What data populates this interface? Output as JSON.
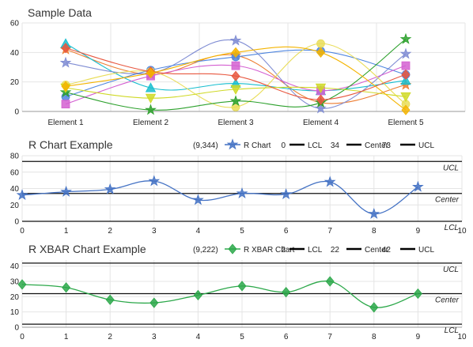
{
  "chart_data": [
    {
      "type": "line",
      "title": "Sample Data",
      "categories": [
        "Element 1",
        "Element 2",
        "Element 3",
        "Element 4",
        "Element 5"
      ],
      "ylim": [
        0,
        60
      ],
      "yticks": [
        "0",
        "20",
        "40",
        "60"
      ],
      "grid": true,
      "legend": "none",
      "series": [
        {
          "values": [
            42,
            25,
            38,
            6,
            18
          ],
          "color": "#ed7d31",
          "marker": "star"
        },
        {
          "values": [
            46,
            16,
            19,
            14,
            21
          ],
          "color": "#17becf",
          "marker": "triangle"
        },
        {
          "values": [
            33,
            26,
            48,
            2,
            39
          ],
          "color": "#7f8cd3",
          "marker": "star"
        },
        {
          "values": [
            10,
            28,
            37,
            41,
            25
          ],
          "color": "#4f86e0",
          "marker": "circle"
        },
        {
          "values": [
            5,
            24,
            31,
            14,
            31
          ],
          "color": "#d45fd1",
          "marker": "square"
        },
        {
          "values": [
            18,
            27,
            3,
            46,
            5
          ],
          "color": "#e9dd58",
          "marker": "circle"
        },
        {
          "values": [
            13,
            1,
            7,
            6,
            49
          ],
          "color": "#2ca02c",
          "marker": "star"
        },
        {
          "values": [
            16,
            9,
            15,
            16,
            10
          ],
          "color": "#cfd926",
          "marker": "triangle-down"
        },
        {
          "values": [
            43,
            27,
            24,
            8,
            25
          ],
          "color": "#e8573f",
          "marker": "diamond"
        },
        {
          "values": [
            17,
            26,
            40,
            40,
            1
          ],
          "color": "#f4b400",
          "marker": "diamond"
        }
      ]
    },
    {
      "type": "line",
      "title": "R Chart Example",
      "legend_text": "(9,344)",
      "xlim": [
        0,
        10
      ],
      "ylim": [
        0,
        80
      ],
      "xticks": [
        "0",
        "1",
        "2",
        "3",
        "4",
        "5",
        "6",
        "7",
        "8",
        "9",
        "10"
      ],
      "yticks": [
        "0",
        "20",
        "40",
        "60",
        "80"
      ],
      "grid": true,
      "series": [
        {
          "name": "R Chart",
          "color": "#4472c4",
          "marker": "star",
          "x": [
            0,
            1,
            2,
            3,
            4,
            5,
            6,
            7,
            8,
            9
          ],
          "values": [
            32,
            36,
            39,
            49,
            26,
            34,
            33,
            48,
            9,
            42
          ]
        }
      ],
      "control_lines": [
        {
          "name": "LCL",
          "legend_value": "0",
          "value": 0,
          "label": "LCL"
        },
        {
          "name": "Center",
          "legend_value": "34",
          "value": 34,
          "label": "Center"
        },
        {
          "name": "UCL",
          "legend_value": "73",
          "value": 73,
          "label": "UCL"
        }
      ]
    },
    {
      "type": "line",
      "title": "R XBAR Chart Example",
      "legend_text": "(9,222)",
      "xlim": [
        0,
        10
      ],
      "ylim": [
        0,
        44
      ],
      "xticks": [
        "0",
        "1",
        "2",
        "3",
        "4",
        "5",
        "6",
        "7",
        "8",
        "9",
        "10"
      ],
      "yticks": [
        "0",
        "10",
        "20",
        "30",
        "40"
      ],
      "grid": true,
      "series": [
        {
          "name": "R XBAR Chart",
          "color": "#2ca84a",
          "marker": "diamond",
          "x": [
            0,
            1,
            2,
            3,
            4,
            5,
            6,
            7,
            8,
            9
          ],
          "values": [
            28,
            26,
            18,
            16,
            21,
            27,
            23,
            30,
            13,
            22
          ]
        }
      ],
      "control_lines": [
        {
          "name": "LCL",
          "legend_value": "2",
          "value": 2,
          "label": "LCL"
        },
        {
          "name": "Center",
          "legend_value": "22",
          "value": 22,
          "label": "Center"
        },
        {
          "name": "UCL",
          "legend_value": "42",
          "value": 42,
          "label": "UCL"
        }
      ]
    }
  ]
}
